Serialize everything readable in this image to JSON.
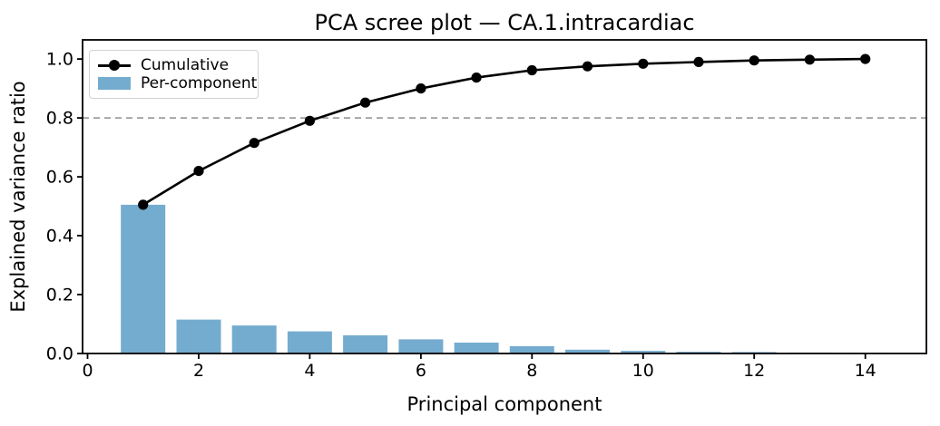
{
  "chart_data": {
    "type": "bar+line",
    "title": "PCA scree plot — CA.1.intracardiac",
    "xlabel": "Principal component",
    "ylabel": "Explained variance ratio",
    "x": [
      1,
      2,
      3,
      4,
      5,
      6,
      7,
      8,
      9,
      10,
      11,
      12,
      13,
      14
    ],
    "series": [
      {
        "name": "Cumulative",
        "type": "line",
        "color": "#000000",
        "marker": "circle",
        "values": [
          0.505,
          0.62,
          0.715,
          0.79,
          0.852,
          0.9,
          0.937,
          0.962,
          0.975,
          0.984,
          0.99,
          0.995,
          0.998,
          1.0
        ]
      },
      {
        "name": "Per-component",
        "type": "bar",
        "color": "#74accf",
        "values": [
          0.505,
          0.115,
          0.095,
          0.075,
          0.062,
          0.048,
          0.037,
          0.025,
          0.013,
          0.009,
          0.006,
          0.005,
          0.003,
          0.002
        ]
      }
    ],
    "threshold_line": {
      "y": 0.8,
      "color": "#9e9e9e",
      "style": "dashed"
    },
    "xlim": [
      -0.09,
      15.1
    ],
    "ylim": [
      0,
      1.065
    ],
    "x_ticks": [
      0,
      2,
      4,
      6,
      8,
      10,
      12,
      14
    ],
    "y_ticks": [
      0.0,
      0.2,
      0.4,
      0.6,
      0.8,
      1.0
    ],
    "bar_width": 0.8,
    "grid": false,
    "legend_position": "upper left"
  },
  "legend": {
    "items": [
      {
        "label": "Cumulative"
      },
      {
        "label": "Per-component"
      }
    ]
  },
  "colors": {
    "bar": "#74accf",
    "line": "#000000",
    "threshold": "#9e9e9e",
    "spine": "#000000",
    "background": "#ffffff",
    "legend_border": "#d2d2d2"
  }
}
